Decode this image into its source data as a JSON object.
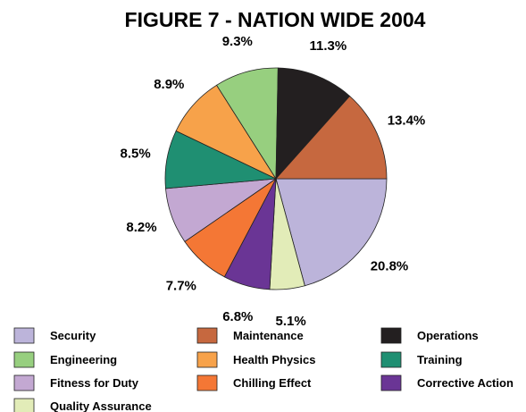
{
  "chart_data": {
    "type": "pie",
    "title": "FIGURE 7 - NATION WIDE 2004",
    "slices": [
      {
        "label": "Security",
        "value": 20.8,
        "display": "20.8%",
        "color": "#bcb4da"
      },
      {
        "label": "Quality Assurance",
        "value": 5.1,
        "display": "5.1%",
        "color": "#e2ecb8"
      },
      {
        "label": "Corrective Action",
        "value": 6.8,
        "display": "6.8%",
        "color": "#6a3595"
      },
      {
        "label": "Chilling Effect",
        "value": 7.7,
        "display": "7.7%",
        "color": "#f47735"
      },
      {
        "label": "Fitness for Duty",
        "value": 8.2,
        "display": "8.2%",
        "color": "#c3a8d2"
      },
      {
        "label": "Training",
        "value": 8.5,
        "display": "8.5%",
        "color": "#1f8f72"
      },
      {
        "label": "Health Physics",
        "value": 8.9,
        "display": "8.9%",
        "color": "#f7a24a"
      },
      {
        "label": "Engineering",
        "value": 9.3,
        "display": "9.3%",
        "color": "#97cf7f"
      },
      {
        "label": "Operations",
        "value": 11.3,
        "display": "11.3%",
        "color": "#231f20"
      },
      {
        "label": "Maintenance",
        "value": 13.4,
        "display": "13.4%",
        "color": "#c6683f"
      }
    ],
    "start": "3 o'clock",
    "direction": "clockwise",
    "legend": {
      "position": "bottom",
      "items": [
        "Security",
        "Maintenance",
        "Operations",
        "Engineering",
        "Health Physics",
        "Training",
        "Fitness for Duty",
        "Chilling Effect",
        "Corrective Action",
        "Quality Assurance"
      ]
    }
  }
}
